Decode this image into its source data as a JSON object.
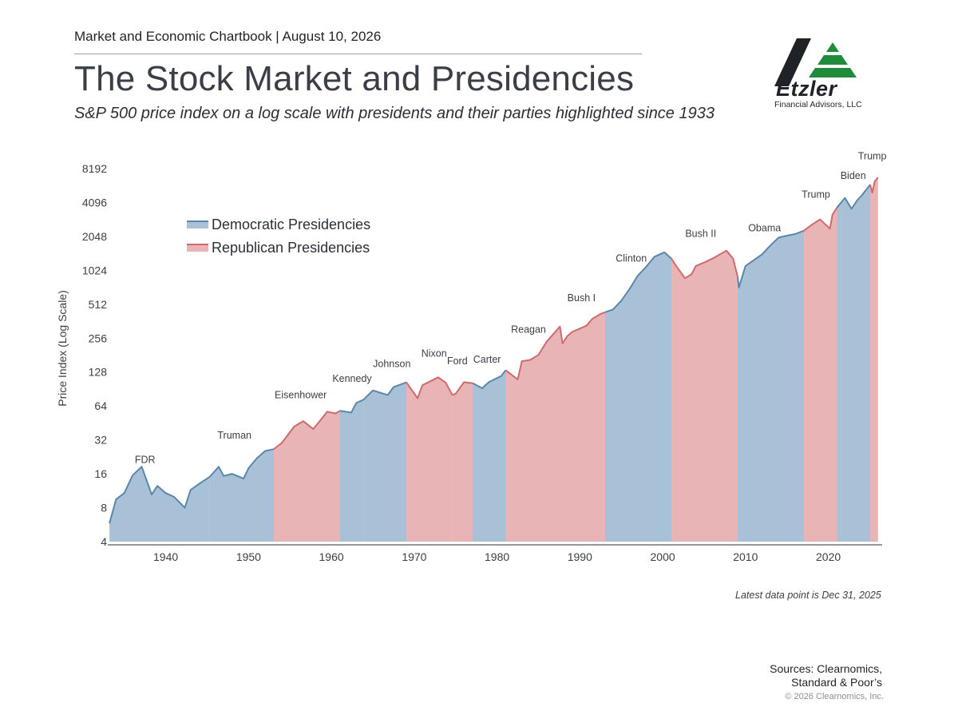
{
  "header": {
    "chartbook": "Market and Economic Chartbook | August 10, 2026",
    "title": "The Stock Market and Presidencies",
    "subtitle": "S&P 500 price index on a log scale with presidents and their parties highlighted since 1933"
  },
  "logo": {
    "wordmark": "Etzler",
    "company": "Financial Advisors, LLC",
    "colors": {
      "black": "#1f2328",
      "green": "#1e8c3a"
    }
  },
  "chart_data": {
    "type": "area",
    "ylabel": "Price Index (Log Scale)",
    "xlabel": "",
    "yscale": "log2",
    "ylim": [
      4,
      8192
    ],
    "xlim": [
      1933,
      2026.5
    ],
    "yticks": [
      4,
      8,
      16,
      32,
      64,
      128,
      256,
      512,
      1024,
      2048,
      4096,
      8192
    ],
    "xticks": [
      1940,
      1950,
      1960,
      1970,
      1980,
      1990,
      2000,
      2010,
      2020
    ],
    "legend": {
      "placement": "top-left",
      "entries": [
        {
          "label": "Democratic Presidencies",
          "party": "D"
        },
        {
          "label": "Republican Presidencies",
          "party": "R"
        }
      ]
    },
    "colors": {
      "D_fill": "#a9c1d6",
      "D_line": "#5b86ab",
      "R_fill": "#e8b4b5",
      "R_line": "#d06a6c",
      "axis": "#555a60",
      "tick_text": "#3a3f47"
    },
    "presidencies": [
      {
        "name": "FDR",
        "party": "D",
        "start": 1933.2,
        "end": 1945.3
      },
      {
        "name": "Truman",
        "party": "D",
        "start": 1945.3,
        "end": 1953.05
      },
      {
        "name": "Eisenhower",
        "party": "R",
        "start": 1953.05,
        "end": 1961.05
      },
      {
        "name": "Kennedy",
        "party": "D",
        "start": 1961.05,
        "end": 1963.9
      },
      {
        "name": "Johnson",
        "party": "D",
        "start": 1963.9,
        "end": 1969.05
      },
      {
        "name": "Nixon",
        "party": "R",
        "start": 1969.05,
        "end": 1974.6
      },
      {
        "name": "Ford",
        "party": "R",
        "start": 1974.6,
        "end": 1977.05
      },
      {
        "name": "Carter",
        "party": "D",
        "start": 1977.05,
        "end": 1981.05
      },
      {
        "name": "Reagan",
        "party": "R",
        "start": 1981.05,
        "end": 1989.05
      },
      {
        "name": "Bush I",
        "party": "R",
        "start": 1989.05,
        "end": 1993.05
      },
      {
        "name": "Clinton",
        "party": "D",
        "start": 1993.05,
        "end": 2001.05
      },
      {
        "name": "Bush II",
        "party": "R",
        "start": 2001.05,
        "end": 2009.05
      },
      {
        "name": "Obama",
        "party": "D",
        "start": 2009.05,
        "end": 2017.05
      },
      {
        "name": "Trump",
        "party": "R",
        "start": 2017.05,
        "end": 2021.05
      },
      {
        "name": "Biden",
        "party": "D",
        "start": 2021.05,
        "end": 2025.05
      },
      {
        "name": "Trump",
        "party": "R",
        "start": 2025.05,
        "end": 2026.0
      }
    ],
    "president_labels": [
      {
        "name": "FDR",
        "x": 1937.5,
        "y": 20
      },
      {
        "name": "Truman",
        "x": 1948.3,
        "y": 33
      },
      {
        "name": "Eisenhower",
        "x": 1956.3,
        "y": 75
      },
      {
        "name": "Kennedy",
        "x": 1962.5,
        "y": 105
      },
      {
        "name": "Johnson",
        "x": 1967.3,
        "y": 142
      },
      {
        "name": "Nixon",
        "x": 1972.4,
        "y": 175
      },
      {
        "name": "Ford",
        "x": 1975.2,
        "y": 150
      },
      {
        "name": "Carter",
        "x": 1978.8,
        "y": 155
      },
      {
        "name": "Reagan",
        "x": 1983.8,
        "y": 285
      },
      {
        "name": "Bush I",
        "x": 1990.2,
        "y": 545
      },
      {
        "name": "Clinton",
        "x": 1996.2,
        "y": 1220
      },
      {
        "name": "Bush II",
        "x": 2004.6,
        "y": 2030
      },
      {
        "name": "Obama",
        "x": 2012.3,
        "y": 2280
      },
      {
        "name": "Trump",
        "x": 2018.5,
        "y": 4500
      },
      {
        "name": "Biden",
        "x": 2023.0,
        "y": 6650
      },
      {
        "name": "Trump",
        "x": 2025.3,
        "y": 9900
      }
    ],
    "series": {
      "name": "S&P 500",
      "x": [
        1933.2,
        1934,
        1935,
        1936,
        1937.1,
        1938.3,
        1939,
        1940,
        1941,
        1942.3,
        1943,
        1944,
        1945.3,
        1946.4,
        1947,
        1948,
        1949.4,
        1950,
        1951,
        1952,
        1953.05,
        1954,
        1955.5,
        1956.6,
        1957.8,
        1958.5,
        1959.5,
        1960.5,
        1961.05,
        1962.4,
        1963,
        1963.9,
        1965,
        1966.8,
        1967.5,
        1968.8,
        1969.05,
        1970.4,
        1971,
        1972.9,
        1973.8,
        1974.6,
        1975,
        1976,
        1977.05,
        1978.2,
        1979,
        1980.5,
        1981.05,
        1982.5,
        1983,
        1984,
        1985,
        1986,
        1987.6,
        1987.9,
        1988.5,
        1989.05,
        1990.8,
        1991.5,
        1992.5,
        1993.05,
        1994,
        1995,
        1996,
        1997,
        1998,
        1999,
        2000.2,
        2001.05,
        2001.7,
        2002.7,
        2003.5,
        2004,
        2005,
        2006,
        2007.7,
        2008.5,
        2009.05,
        2009.2,
        2010,
        2011,
        2012,
        2013,
        2014,
        2015,
        2016,
        2017.05,
        2018,
        2019,
        2020.2,
        2020.5,
        2021.05,
        2022,
        2022.8,
        2023.5,
        2024,
        2025.05,
        2025.3,
        2025.6,
        2026.0
      ],
      "y": [
        5.8,
        9.5,
        10.8,
        15.5,
        18.5,
        10.5,
        12.5,
        10.8,
        10.0,
        8.0,
        11.5,
        13.0,
        15.0,
        18.5,
        15.3,
        16.0,
        14.5,
        18.0,
        22.0,
        25.5,
        26.5,
        30.0,
        42.0,
        47.0,
        40.0,
        46.0,
        57.0,
        55.0,
        58.0,
        56.0,
        68.0,
        73.0,
        88.0,
        80.0,
        94.0,
        102.0,
        104.0,
        75.0,
        98.0,
        115.0,
        103.0,
        80.0,
        82.0,
        104.0,
        102.0,
        92.0,
        104.0,
        118.0,
        133.0,
        110.0,
        160.0,
        164.0,
        182.0,
        238.0,
        325.0,
        230.0,
        268.0,
        290.0,
        330.0,
        380.0,
        420.0,
        435.0,
        460.0,
        550.0,
        700.0,
        920.0,
        1100.0,
        1350.0,
        1480.0,
        1300.0,
        1100.0,
        870.0,
        950.0,
        1120.0,
        1200.0,
        1300.0,
        1530.0,
        1300.0,
        900.0,
        720.0,
        1120.0,
        1260.0,
        1420.0,
        1700.0,
        2000.0,
        2080.0,
        2150.0,
        2300.0,
        2600.0,
        2900.0,
        2400.0,
        3200.0,
        3700.0,
        4500.0,
        3600.0,
        4300.0,
        4700.0,
        5900.0,
        5000.0,
        6300.0,
        6850.0
      ]
    }
  },
  "footnote": "Latest data point is Dec 31, 2025",
  "sources": {
    "line1": "Sources: Clearnomics,",
    "line2": "Standard & Poor’s"
  },
  "copyright": "© 2026 Clearnomics, Inc."
}
